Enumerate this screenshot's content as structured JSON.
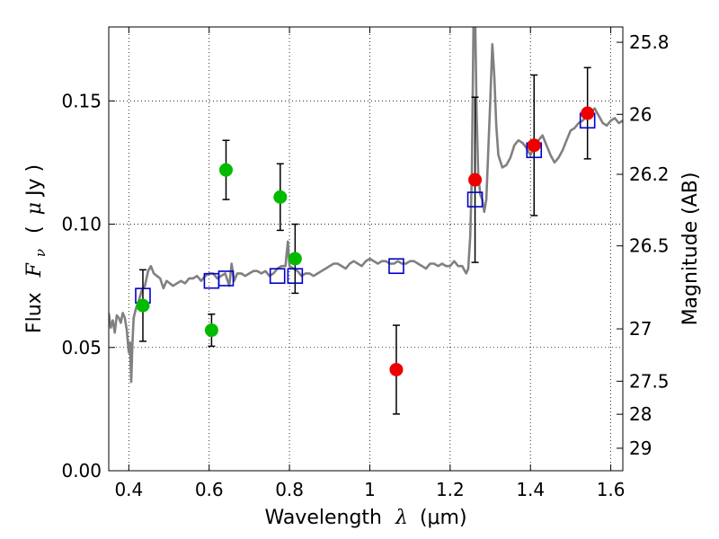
{
  "chart_data": {
    "type": "scatter",
    "xlabel_text": "Wavelength",
    "xlabel_symbol": "λ",
    "xlabel_unit": "(μm)",
    "ylabel_text": "Flux",
    "ylabel_symbol": "F",
    "ylabel_sub": "ν",
    "ylabel_unit_open": "(",
    "ylabel_unit_mu": "μ",
    "ylabel_unit_rest": "Jy )",
    "y2label": "Magnitude (AB)",
    "xlim": [
      0.35,
      1.63
    ],
    "ylim": [
      0.0,
      0.18
    ],
    "grid": true,
    "x_ticks": [
      0.4,
      0.6,
      0.8,
      1.0,
      1.2,
      1.4,
      1.6
    ],
    "x_tick_labels": [
      "0.4",
      "0.6",
      "0.8",
      "1",
      "1.2",
      "1.4",
      "1.6"
    ],
    "y_ticks": [
      0.0,
      0.05,
      0.1,
      0.15
    ],
    "y_tick_labels": [
      "0.00",
      "0.05",
      "0.10",
      "0.15"
    ],
    "mag_ticks": [
      {
        "label": "25.8",
        "mag": 25.8
      },
      {
        "label": "26",
        "mag": 26.0
      },
      {
        "label": "26.2",
        "mag": 26.2
      },
      {
        "label": "26.5",
        "mag": 26.5
      },
      {
        "label": "27",
        "mag": 27.0
      },
      {
        "label": "27.5",
        "mag": 27.5
      },
      {
        "label": "28",
        "mag": 28.0
      },
      {
        "label": "29",
        "mag": 29.0
      }
    ],
    "series": [
      {
        "kind": "model_sed",
        "color": "#808080",
        "points": [
          [
            0.35,
            0.064
          ],
          [
            0.355,
            0.058
          ],
          [
            0.36,
            0.061
          ],
          [
            0.365,
            0.056
          ],
          [
            0.37,
            0.063
          ],
          [
            0.375,
            0.062
          ],
          [
            0.38,
            0.06
          ],
          [
            0.385,
            0.064
          ],
          [
            0.39,
            0.062
          ],
          [
            0.395,
            0.057
          ],
          [
            0.4,
            0.048
          ],
          [
            0.403,
            0.052
          ],
          [
            0.406,
            0.036
          ],
          [
            0.409,
            0.052
          ],
          [
            0.412,
            0.062
          ],
          [
            0.418,
            0.066
          ],
          [
            0.425,
            0.069
          ],
          [
            0.432,
            0.073
          ],
          [
            0.44,
            0.075
          ],
          [
            0.448,
            0.081
          ],
          [
            0.455,
            0.083
          ],
          [
            0.462,
            0.08
          ],
          [
            0.47,
            0.079
          ],
          [
            0.478,
            0.078
          ],
          [
            0.486,
            0.074
          ],
          [
            0.494,
            0.077
          ],
          [
            0.502,
            0.076
          ],
          [
            0.51,
            0.075
          ],
          [
            0.52,
            0.076
          ],
          [
            0.53,
            0.077
          ],
          [
            0.54,
            0.076
          ],
          [
            0.55,
            0.078
          ],
          [
            0.56,
            0.078
          ],
          [
            0.57,
            0.079
          ],
          [
            0.58,
            0.077
          ],
          [
            0.59,
            0.079
          ],
          [
            0.6,
            0.08
          ],
          [
            0.61,
            0.08
          ],
          [
            0.62,
            0.078
          ],
          [
            0.63,
            0.079
          ],
          [
            0.64,
            0.08
          ],
          [
            0.65,
            0.075
          ],
          [
            0.656,
            0.084
          ],
          [
            0.662,
            0.077
          ],
          [
            0.67,
            0.08
          ],
          [
            0.68,
            0.08
          ],
          [
            0.69,
            0.079
          ],
          [
            0.7,
            0.08
          ],
          [
            0.71,
            0.081
          ],
          [
            0.72,
            0.081
          ],
          [
            0.73,
            0.08
          ],
          [
            0.74,
            0.081
          ],
          [
            0.75,
            0.079
          ],
          [
            0.76,
            0.08
          ],
          [
            0.77,
            0.082
          ],
          [
            0.78,
            0.083
          ],
          [
            0.79,
            0.083
          ],
          [
            0.796,
            0.093
          ],
          [
            0.8,
            0.083
          ],
          [
            0.81,
            0.082
          ],
          [
            0.82,
            0.081
          ],
          [
            0.83,
            0.079
          ],
          [
            0.84,
            0.08
          ],
          [
            0.85,
            0.08
          ],
          [
            0.86,
            0.079
          ],
          [
            0.87,
            0.08
          ],
          [
            0.88,
            0.081
          ],
          [
            0.89,
            0.082
          ],
          [
            0.9,
            0.083
          ],
          [
            0.91,
            0.084
          ],
          [
            0.92,
            0.084
          ],
          [
            0.93,
            0.083
          ],
          [
            0.94,
            0.082
          ],
          [
            0.95,
            0.084
          ],
          [
            0.96,
            0.085
          ],
          [
            0.97,
            0.084
          ],
          [
            0.98,
            0.083
          ],
          [
            0.99,
            0.085
          ],
          [
            1.0,
            0.086
          ],
          [
            1.01,
            0.085
          ],
          [
            1.02,
            0.084
          ],
          [
            1.03,
            0.085
          ],
          [
            1.04,
            0.085
          ],
          [
            1.05,
            0.084
          ],
          [
            1.06,
            0.084
          ],
          [
            1.07,
            0.085
          ],
          [
            1.08,
            0.084
          ],
          [
            1.09,
            0.084
          ],
          [
            1.1,
            0.085
          ],
          [
            1.11,
            0.085
          ],
          [
            1.12,
            0.084
          ],
          [
            1.13,
            0.083
          ],
          [
            1.14,
            0.082
          ],
          [
            1.15,
            0.084
          ],
          [
            1.16,
            0.084
          ],
          [
            1.17,
            0.083
          ],
          [
            1.18,
            0.084
          ],
          [
            1.19,
            0.083
          ],
          [
            1.2,
            0.083
          ],
          [
            1.21,
            0.085
          ],
          [
            1.22,
            0.083
          ],
          [
            1.23,
            0.083
          ],
          [
            1.24,
            0.08
          ],
          [
            1.245,
            0.082
          ],
          [
            1.25,
            0.095
          ],
          [
            1.254,
            0.12
          ],
          [
            1.258,
            0.18
          ],
          [
            1.262,
            0.186
          ],
          [
            1.266,
            0.145
          ],
          [
            1.27,
            0.12
          ],
          [
            1.275,
            0.112
          ],
          [
            1.28,
            0.11
          ],
          [
            1.285,
            0.105
          ],
          [
            1.29,
            0.11
          ],
          [
            1.295,
            0.13
          ],
          [
            1.3,
            0.15
          ],
          [
            1.305,
            0.173
          ],
          [
            1.31,
            0.16
          ],
          [
            1.315,
            0.14
          ],
          [
            1.32,
            0.128
          ],
          [
            1.33,
            0.123
          ],
          [
            1.34,
            0.124
          ],
          [
            1.35,
            0.127
          ],
          [
            1.36,
            0.132
          ],
          [
            1.37,
            0.134
          ],
          [
            1.38,
            0.133
          ],
          [
            1.39,
            0.131
          ],
          [
            1.4,
            0.128
          ],
          [
            1.41,
            0.132
          ],
          [
            1.42,
            0.134
          ],
          [
            1.43,
            0.136
          ],
          [
            1.44,
            0.132
          ],
          [
            1.45,
            0.128
          ],
          [
            1.46,
            0.125
          ],
          [
            1.47,
            0.127
          ],
          [
            1.48,
            0.13
          ],
          [
            1.49,
            0.134
          ],
          [
            1.5,
            0.138
          ],
          [
            1.51,
            0.139
          ],
          [
            1.52,
            0.141
          ],
          [
            1.53,
            0.142
          ],
          [
            1.54,
            0.144
          ],
          [
            1.55,
            0.145
          ],
          [
            1.56,
            0.147
          ],
          [
            1.57,
            0.144
          ],
          [
            1.58,
            0.141
          ],
          [
            1.59,
            0.14
          ],
          [
            1.6,
            0.142
          ],
          [
            1.61,
            0.143
          ],
          [
            1.62,
            0.141
          ],
          [
            1.63,
            0.142
          ]
        ]
      },
      {
        "kind": "model_squares",
        "color": "#0000cc",
        "points": [
          {
            "x": 0.435,
            "y": 0.071
          },
          {
            "x": 0.606,
            "y": 0.077
          },
          {
            "x": 0.642,
            "y": 0.078
          },
          {
            "x": 0.77,
            "y": 0.079
          },
          {
            "x": 0.814,
            "y": 0.079
          },
          {
            "x": 1.066,
            "y": 0.083
          },
          {
            "x": 1.262,
            "y": 0.11
          },
          {
            "x": 1.409,
            "y": 0.13
          },
          {
            "x": 1.542,
            "y": 0.142
          }
        ]
      },
      {
        "kind": "obs_green",
        "color": "#00bb00",
        "points": [
          {
            "x": 0.435,
            "y": 0.067,
            "err": 0.0145
          },
          {
            "x": 0.606,
            "y": 0.057,
            "err": 0.0065
          },
          {
            "x": 0.642,
            "y": 0.122,
            "err": 0.012
          },
          {
            "x": 0.777,
            "y": 0.111,
            "err": 0.0135
          },
          {
            "x": 0.814,
            "y": 0.086,
            "err": 0.014
          }
        ]
      },
      {
        "kind": "obs_red",
        "color": "#ee0000",
        "points": [
          {
            "x": 1.066,
            "y": 0.041,
            "err": 0.018
          },
          {
            "x": 1.262,
            "y": 0.118,
            "err": 0.0335
          },
          {
            "x": 1.409,
            "y": 0.132,
            "err": 0.0285
          },
          {
            "x": 1.542,
            "y": 0.145,
            "err": 0.0185
          }
        ]
      }
    ]
  }
}
